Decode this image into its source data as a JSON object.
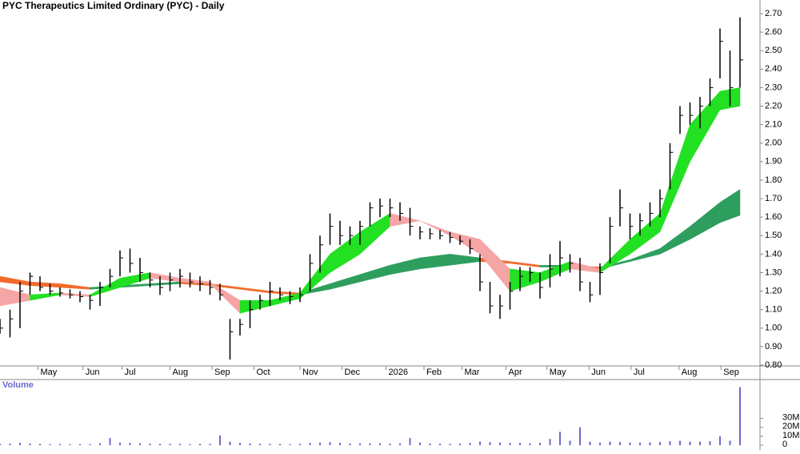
{
  "chart_data": {
    "type": "ohlc",
    "title": "PYC Therapeutics Limited Ordinary (PYC) - Daily",
    "volume_label": "Volume",
    "x": [
      0,
      1,
      2,
      3,
      4,
      5,
      6,
      7,
      8,
      9,
      10,
      11,
      12,
      13,
      14,
      15,
      16,
      17,
      18,
      19,
      20,
      21,
      22,
      23,
      24,
      25,
      26,
      27,
      28,
      29,
      30,
      31,
      32,
      33,
      34,
      35,
      36,
      37,
      38,
      39,
      40,
      41,
      42,
      43,
      44,
      45,
      46,
      47,
      48,
      49,
      50,
      51,
      52,
      53,
      54,
      55,
      56,
      57,
      58,
      59,
      60,
      61,
      62,
      63,
      64,
      65,
      66,
      67,
      68,
      69,
      70,
      71,
      72,
      73,
      74
    ],
    "high": [
      1.05,
      1.1,
      1.25,
      1.3,
      1.28,
      1.24,
      1.22,
      1.21,
      1.2,
      1.18,
      1.25,
      1.32,
      1.42,
      1.43,
      1.38,
      1.3,
      1.28,
      1.3,
      1.32,
      1.3,
      1.28,
      1.26,
      1.24,
      1.05,
      1.05,
      1.15,
      1.18,
      1.25,
      1.22,
      1.2,
      1.22,
      1.4,
      1.5,
      1.62,
      1.58,
      1.55,
      1.58,
      1.68,
      1.7,
      1.7,
      1.68,
      1.65,
      1.55,
      1.54,
      1.53,
      1.52,
      1.5,
      1.48,
      1.4,
      1.25,
      1.18,
      1.25,
      1.33,
      1.33,
      1.3,
      1.4,
      1.47,
      1.4,
      1.38,
      1.25,
      1.35,
      1.6,
      1.75,
      1.62,
      1.62,
      1.68,
      1.75,
      2.0,
      2.2,
      2.22,
      2.25,
      2.35,
      2.62,
      2.5,
      2.68
    ],
    "low": [
      0.97,
      0.95,
      1.0,
      1.18,
      1.2,
      1.18,
      1.17,
      1.16,
      1.14,
      1.1,
      1.12,
      1.22,
      1.28,
      1.3,
      1.25,
      1.22,
      1.18,
      1.2,
      1.22,
      1.22,
      1.2,
      1.18,
      1.15,
      0.83,
      0.96,
      1.0,
      1.1,
      1.12,
      1.15,
      1.13,
      1.14,
      1.2,
      1.3,
      1.45,
      1.45,
      1.45,
      1.45,
      1.55,
      1.6,
      1.6,
      1.58,
      1.5,
      1.48,
      1.48,
      1.48,
      1.46,
      1.45,
      1.4,
      1.2,
      1.08,
      1.05,
      1.1,
      1.2,
      1.25,
      1.16,
      1.22,
      1.28,
      1.3,
      1.2,
      1.14,
      1.18,
      1.35,
      1.55,
      1.48,
      1.5,
      1.55,
      1.6,
      1.75,
      2.05,
      2.1,
      2.08,
      2.2,
      2.35,
      2.2,
      2.3
    ],
    "close": [
      1.0,
      1.05,
      1.2,
      1.28,
      1.22,
      1.2,
      1.19,
      1.18,
      1.17,
      1.15,
      1.22,
      1.28,
      1.38,
      1.35,
      1.3,
      1.26,
      1.22,
      1.26,
      1.28,
      1.25,
      1.24,
      1.22,
      1.18,
      0.98,
      1.02,
      1.1,
      1.15,
      1.2,
      1.18,
      1.17,
      1.18,
      1.35,
      1.45,
      1.55,
      1.5,
      1.5,
      1.55,
      1.65,
      1.66,
      1.65,
      1.62,
      1.55,
      1.52,
      1.51,
      1.5,
      1.49,
      1.47,
      1.43,
      1.25,
      1.12,
      1.12,
      1.2,
      1.28,
      1.3,
      1.22,
      1.32,
      1.38,
      1.35,
      1.25,
      1.18,
      1.3,
      1.55,
      1.65,
      1.55,
      1.58,
      1.62,
      1.7,
      1.95,
      2.15,
      2.15,
      2.2,
      2.3,
      2.55,
      2.3,
      2.45
    ],
    "volume": [
      1500000,
      1800000,
      2500000,
      2000000,
      1500000,
      1400000,
      1300000,
      1200000,
      1300000,
      1400000,
      2000000,
      8000000,
      3000000,
      2500000,
      2000000,
      1800000,
      1500000,
      1600000,
      1500000,
      1400000,
      1500000,
      1600000,
      11000000,
      4000000,
      2500000,
      2000000,
      1600000,
      1500000,
      1400000,
      1300000,
      1500000,
      2500000,
      3000000,
      3500000,
      2500000,
      2000000,
      2000000,
      2200000,
      2000000,
      1800000,
      2000000,
      8000000,
      3000000,
      2000000,
      1800000,
      1600000,
      1800000,
      2500000,
      4000000,
      3500000,
      3000000,
      2500000,
      2500000,
      2200000,
      2500000,
      7000000,
      15000000,
      5000000,
      20000000,
      4000000,
      3000000,
      4000000,
      3500000,
      3000000,
      3000000,
      3200000,
      3500000,
      4500000,
      5000000,
      4000000,
      4000000,
      4500000,
      10000000,
      5000000,
      65000000
    ],
    "xlim": [
      0,
      76
    ],
    "xticks": [
      {
        "value": 3.8,
        "label": "May"
      },
      {
        "value": 8.3,
        "label": "Jun"
      },
      {
        "value": 12.2,
        "label": "Jul"
      },
      {
        "value": 17,
        "label": "Aug"
      },
      {
        "value": 21.2,
        "label": "Sep"
      },
      {
        "value": 25.4,
        "label": "Oct"
      },
      {
        "value": 30,
        "label": "Nov"
      },
      {
        "value": 34.2,
        "label": "Dec"
      },
      {
        "value": 38.6,
        "label": "2026"
      },
      {
        "value": 42.4,
        "label": "Feb"
      },
      {
        "value": 46.2,
        "label": "Mar"
      },
      {
        "value": 50.6,
        "label": "Apr"
      },
      {
        "value": 54.7,
        "label": "May"
      },
      {
        "value": 58.9,
        "label": "Jun"
      },
      {
        "value": 63.1,
        "label": "Jul"
      },
      {
        "value": 67.9,
        "label": "Aug"
      },
      {
        "value": 72.1,
        "label": "Sep"
      }
    ],
    "ylim": [
      0.8,
      2.7
    ],
    "yticks": [
      {
        "value": 0.8,
        "label": "0.80"
      },
      {
        "value": 0.9,
        "label": "0.90"
      },
      {
        "value": 1,
        "label": "1.00"
      },
      {
        "value": 1.1,
        "label": "1.10"
      },
      {
        "value": 1.2,
        "label": "1.20"
      },
      {
        "value": 1.3,
        "label": "1.30"
      },
      {
        "value": 1.4,
        "label": "1.40"
      },
      {
        "value": 1.5,
        "label": "1.50"
      },
      {
        "value": 1.6,
        "label": "1.60"
      },
      {
        "value": 1.7,
        "label": "1.70"
      },
      {
        "value": 1.8,
        "label": "1.80"
      },
      {
        "value": 1.9,
        "label": "1.90"
      },
      {
        "value": 2,
        "label": "2.00"
      },
      {
        "value": 2.1,
        "label": "2.10"
      },
      {
        "value": 2.2,
        "label": "2.20"
      },
      {
        "value": 2.3,
        "label": "2.30"
      },
      {
        "value": 2.4,
        "label": "2.40"
      },
      {
        "value": 2.5,
        "label": "2.50"
      },
      {
        "value": 2.6,
        "label": "2.60"
      },
      {
        "value": 2.7,
        "label": "2.70"
      }
    ],
    "y2lim": [
      0,
      70000000
    ],
    "y2ticks": [
      0,
      {
        "value": 10000000,
        "label": "10M"
      },
      {
        "value": 20000000,
        "label": "20M"
      },
      {
        "value": 30000000,
        "label": "30M"
      }
    ],
    "bar_color": "#000000",
    "volume_color": "#6a6ad0",
    "ribbon_x": [
      0,
      3,
      6,
      9,
      12,
      15,
      18,
      21,
      24,
      27,
      30,
      33,
      36,
      39,
      42,
      45,
      48,
      51,
      54,
      57,
      60,
      63,
      66,
      69,
      72,
      74
    ],
    "ribbons": [
      {
        "up_color": "#2e9e5e",
        "down_color": "#f26a2a",
        "upper": [
          1.28,
          1.25,
          1.24,
          1.22,
          1.23,
          1.24,
          1.25,
          1.24,
          1.22,
          1.2,
          1.19,
          1.24,
          1.29,
          1.34,
          1.38,
          1.4,
          1.38,
          1.36,
          1.34,
          1.34,
          1.33,
          1.37,
          1.43,
          1.55,
          1.68,
          1.75
        ],
        "lower": [
          1.25,
          1.23,
          1.22,
          1.21,
          1.22,
          1.23,
          1.24,
          1.23,
          1.21,
          1.19,
          1.18,
          1.21,
          1.25,
          1.29,
          1.32,
          1.34,
          1.36,
          1.35,
          1.33,
          1.33,
          1.32,
          1.36,
          1.4,
          1.48,
          1.57,
          1.61
        ]
      },
      {
        "up_color": "#22e022",
        "down_color": "#f5a5a5",
        "upper": [
          1.22,
          1.18,
          1.19,
          1.18,
          1.27,
          1.3,
          1.27,
          1.25,
          1.15,
          1.15,
          1.19,
          1.4,
          1.52,
          1.62,
          1.58,
          1.52,
          1.48,
          1.32,
          1.3,
          1.36,
          1.32,
          1.48,
          1.62,
          2.1,
          2.28,
          2.3
        ],
        "lower": [
          1.12,
          1.15,
          1.18,
          1.17,
          1.22,
          1.27,
          1.25,
          1.24,
          1.08,
          1.12,
          1.16,
          1.3,
          1.4,
          1.55,
          1.58,
          1.5,
          1.4,
          1.2,
          1.25,
          1.32,
          1.3,
          1.4,
          1.52,
          1.9,
          2.18,
          2.2
        ]
      }
    ]
  }
}
